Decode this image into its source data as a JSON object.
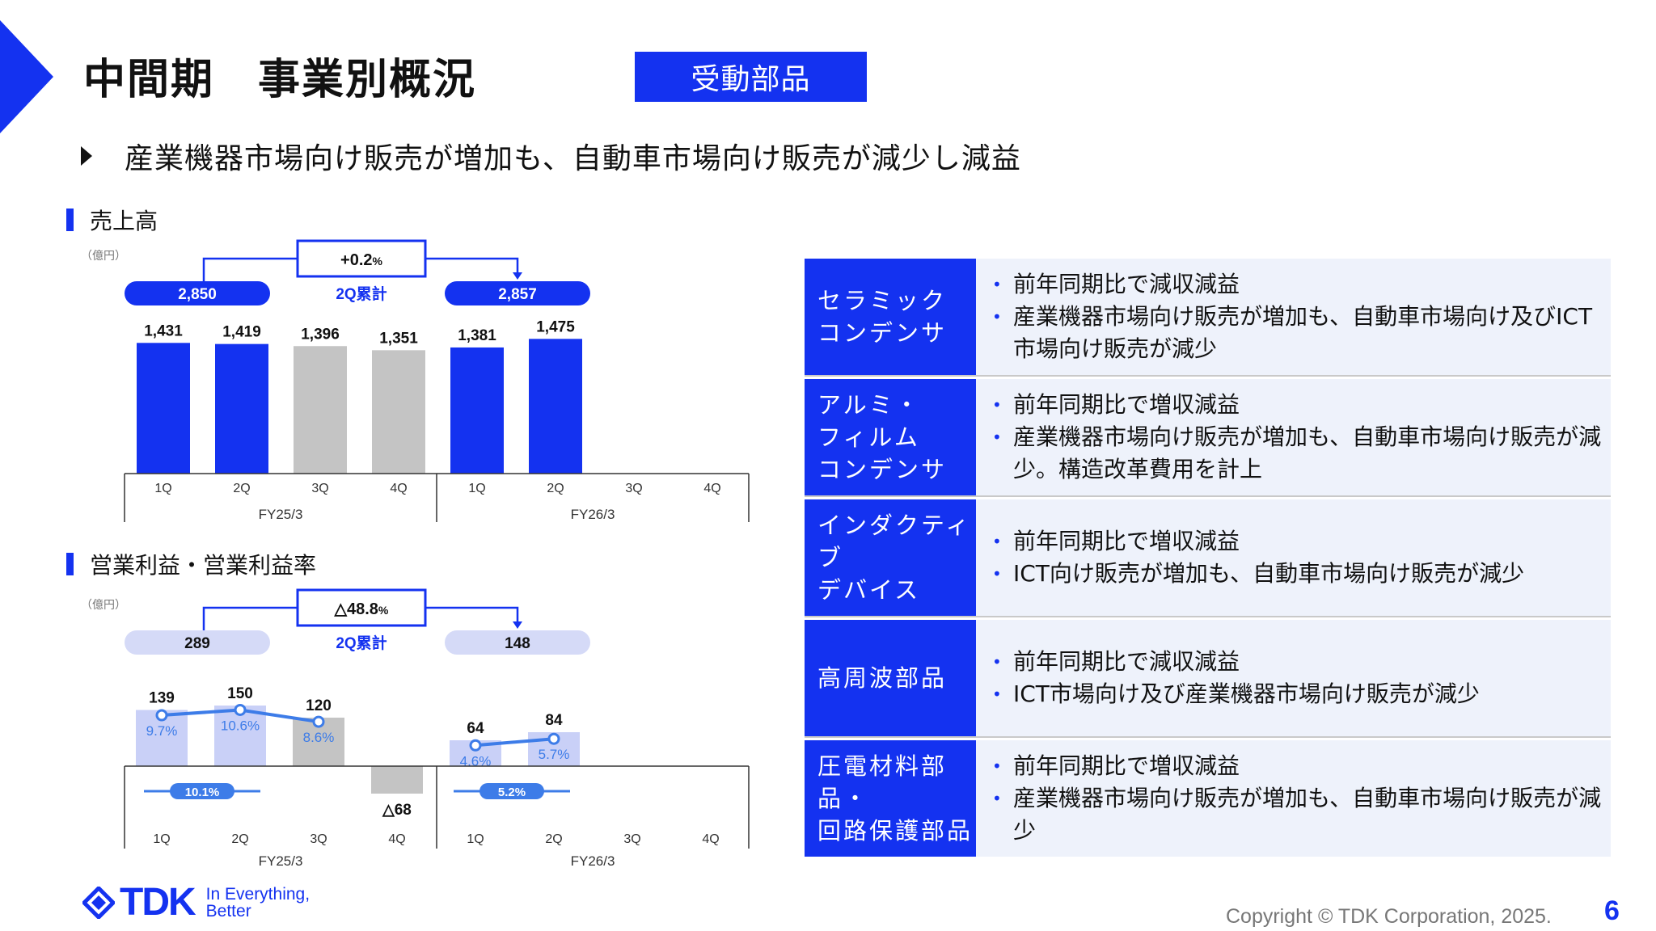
{
  "header": {
    "title": "中間期　事業別概況",
    "segment_badge": "受動部品",
    "headline": "産業機器市場向け販売が増加も、自動車市場向け販売が減少し減益"
  },
  "sales_section": {
    "title": "売上高"
  },
  "profit_section": {
    "title": "営業利益・営業利益率"
  },
  "chart_data": [
    {
      "type": "bar",
      "unit_label": "（億円）",
      "categories": [
        "1Q",
        "2Q",
        "3Q",
        "4Q",
        "1Q",
        "2Q",
        "3Q",
        "4Q"
      ],
      "groups": [
        "FY25/3",
        "FY26/3"
      ],
      "values": [
        1431,
        1419,
        1396,
        1351,
        1381,
        1475,
        null,
        null
      ],
      "value_labels": [
        "1,431",
        "1,419",
        "1,396",
        "1,351",
        "1,381",
        "1,475",
        "",
        ""
      ],
      "highlighted": [
        true,
        true,
        false,
        false,
        true,
        true,
        false,
        false
      ],
      "cumulative": {
        "fy25": "2,850",
        "fy26": "2,857",
        "change": "+0.2",
        "change_unit": "%",
        "caption": "2Q累計"
      },
      "ylim": [
        0,
        1600
      ]
    },
    {
      "type": "bar+line",
      "unit_label": "（億円）",
      "categories": [
        "1Q",
        "2Q",
        "3Q",
        "4Q",
        "1Q",
        "2Q",
        "3Q",
        "4Q"
      ],
      "groups": [
        "FY25/3",
        "FY26/3"
      ],
      "values": [
        139,
        150,
        120,
        -68,
        64,
        84,
        null,
        null
      ],
      "value_labels": [
        "139",
        "150",
        "120",
        "△68",
        "64",
        "84",
        "",
        ""
      ],
      "highlighted": [
        true,
        true,
        false,
        false,
        true,
        true,
        false,
        false
      ],
      "margin_series": {
        "values": [
          9.7,
          10.6,
          8.6,
          null,
          4.6,
          5.7,
          null,
          null
        ],
        "labels": [
          "9.7%",
          "10.6%",
          "8.6%",
          "",
          "4.6%",
          "5.7%",
          "",
          ""
        ]
      },
      "avg_margins": {
        "fy25": "10.1%",
        "fy26": "5.2%"
      },
      "cumulative": {
        "fy25": "289",
        "fy26": "148",
        "change": "△48.8",
        "change_unit": "%",
        "caption": "2Q累計"
      },
      "ylim": [
        -80,
        200
      ]
    }
  ],
  "segments": [
    {
      "name": "セラミック\nコンデンサ",
      "bullets": [
        "前年同期比で減収減益",
        "産業機器市場向け販売が増加も、自動車市場向け及びICT市場向け販売が減少"
      ]
    },
    {
      "name": "アルミ・\nフィルム\nコンデンサ",
      "bullets": [
        "前年同期比で増収減益",
        "産業機器市場向け販売が増加も、自動車市場向け販売が減少。構造改革費用を計上"
      ]
    },
    {
      "name": "インダクティブ\nデバイス",
      "bullets": [
        "前年同期比で増収減益",
        "ICT向け販売が増加も、自動車市場向け販売が減少"
      ]
    },
    {
      "name": "高周波部品",
      "bullets": [
        "前年同期比で減収減益",
        "ICT市場向け及び産業機器市場向け販売が減少"
      ]
    },
    {
      "name": "圧電材料部品・\n回路保護部品",
      "bullets": [
        "前年同期比で増収減益",
        "産業機器市場向け販売が増加も、自動車市場向け販売が減少"
      ]
    }
  ],
  "footer": {
    "logo_text": "TDK",
    "tagline": "In Everything,\nBetter",
    "copyright": "Copyright  © TDK Corporation, 2025.",
    "page_number": "6"
  },
  "colors": {
    "accent": "#1432f0",
    "bar_gray": "#c4c4c4",
    "bar_light": "#c9d0f7",
    "line": "#3d7ce8",
    "pill_light": "#d5daf7"
  }
}
